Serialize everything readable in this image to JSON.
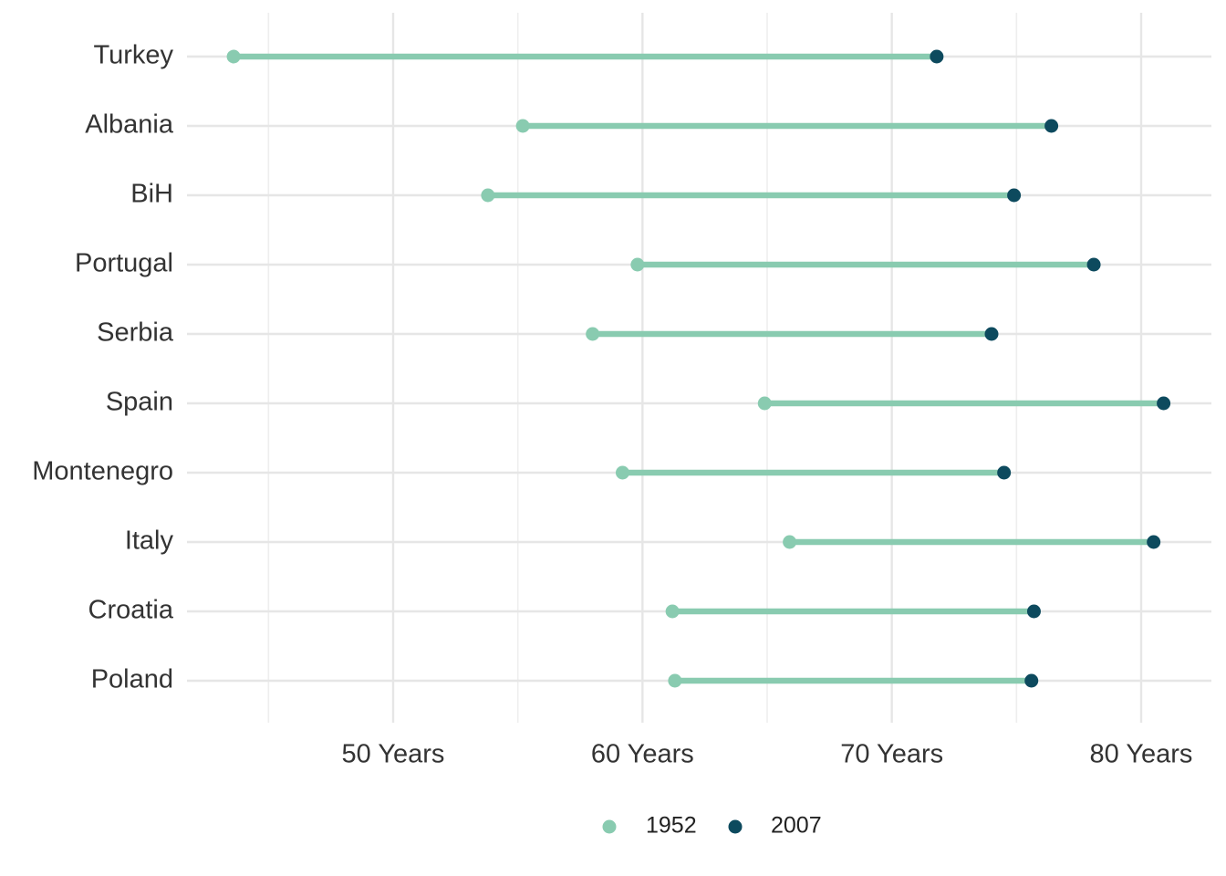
{
  "chart_data": {
    "type": "dumbbell",
    "title": "",
    "xlabel": "",
    "ylabel": "",
    "x_axis": {
      "range": [
        42,
        83
      ],
      "major_ticks": [
        50,
        60,
        70,
        80
      ],
      "minor_ticks": [
        45,
        55,
        65,
        75
      ],
      "tick_labels": [
        "50 Years",
        "60 Years",
        "70 Years",
        "80 Years"
      ]
    },
    "grid": true,
    "legend_position": "bottom",
    "series": [
      {
        "name": "1952",
        "color": "#89cbb0"
      },
      {
        "name": "2007",
        "color": "#0d4a5e"
      }
    ],
    "segment_color": "#89cbb0",
    "categories": [
      "Turkey",
      "Albania",
      "BiH",
      "Portugal",
      "Serbia",
      "Spain",
      "Montenegro",
      "Italy",
      "Croatia",
      "Poland"
    ],
    "values_1952": [
      43.6,
      55.2,
      53.8,
      59.8,
      58.0,
      64.9,
      59.2,
      65.9,
      61.2,
      61.3
    ],
    "values_2007": [
      71.8,
      76.4,
      74.9,
      78.1,
      74.0,
      80.9,
      74.5,
      80.5,
      75.7,
      75.6
    ]
  }
}
